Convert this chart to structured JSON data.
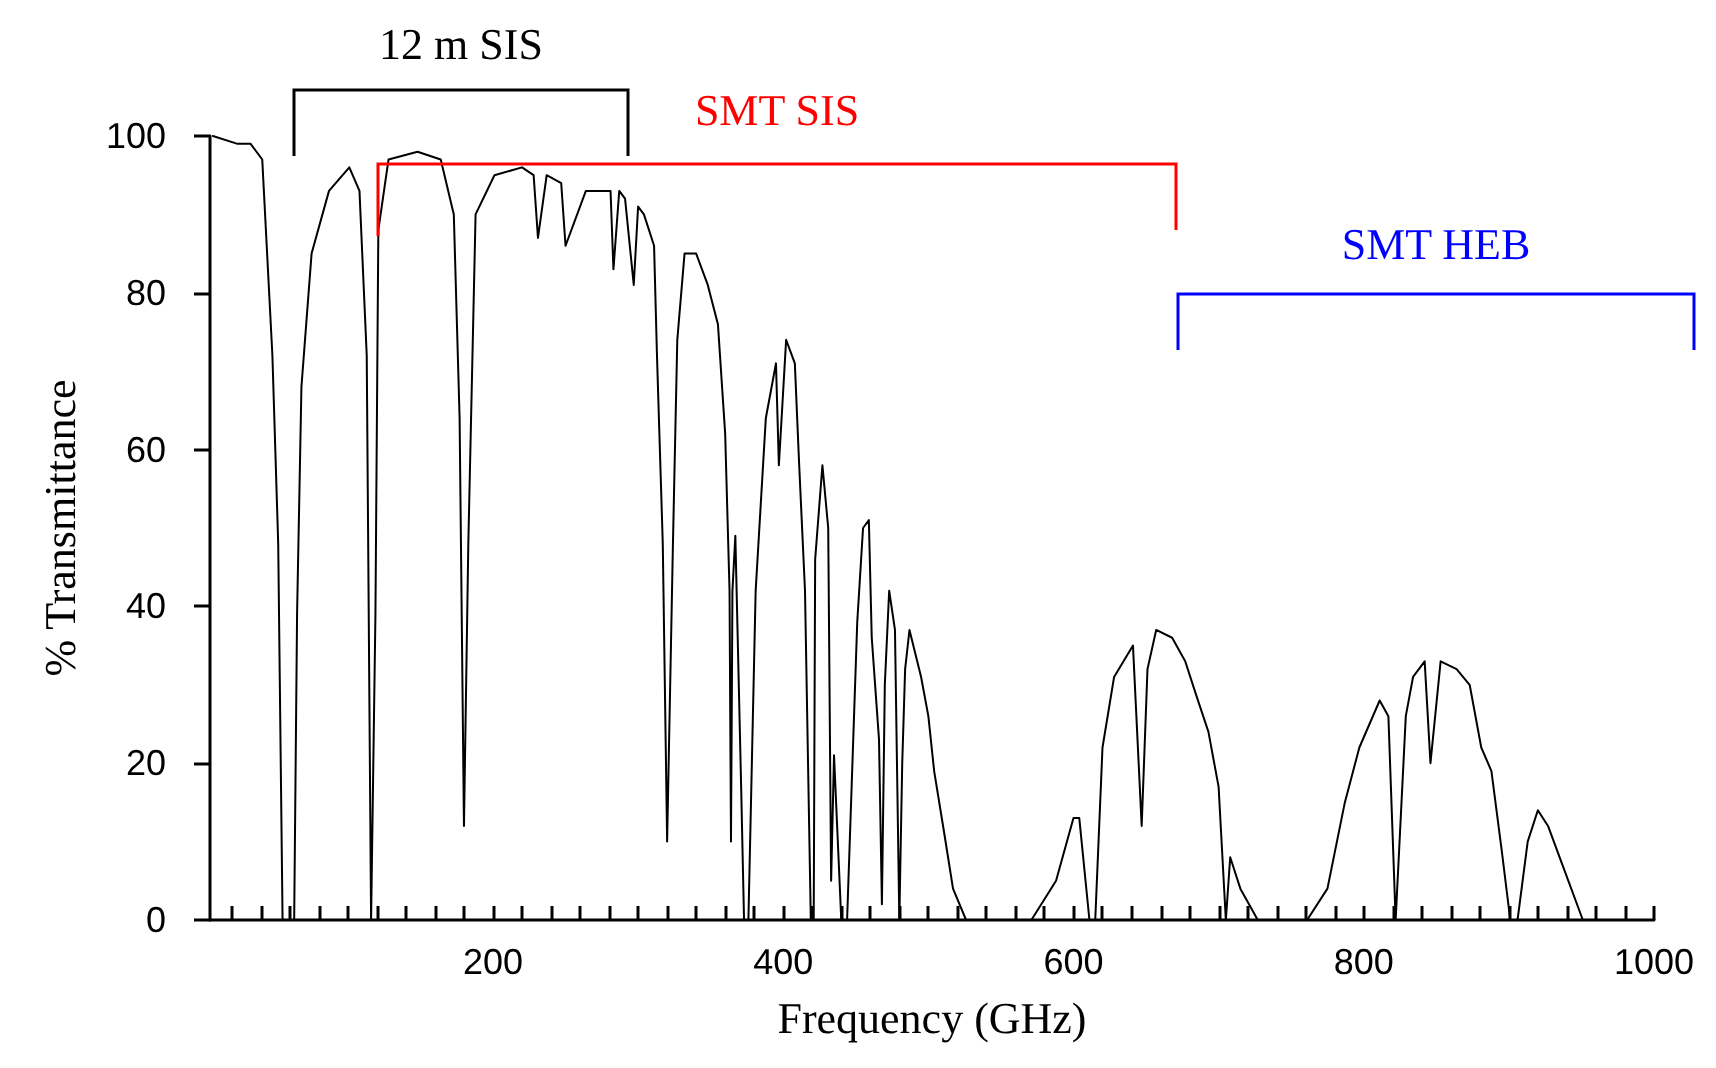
{
  "chart_data": {
    "type": "line",
    "xlabel": "Frequency (GHz)",
    "ylabel": "% Transmittance",
    "xlim": [
      5,
      1000
    ],
    "ylim": [
      0,
      100
    ],
    "xticks": [
      {
        "value": 20,
        "label": null
      },
      {
        "value": 40,
        "label": null
      },
      {
        "value": 60,
        "label": null
      },
      {
        "value": 80,
        "label": null
      },
      {
        "value": 100,
        "label": null
      },
      {
        "value": 120,
        "label": null
      },
      {
        "value": 140,
        "label": null
      },
      {
        "value": 160,
        "label": null
      },
      {
        "value": 180,
        "label": null
      },
      200,
      {
        "value": 220,
        "label": null
      },
      {
        "value": 240,
        "label": null
      },
      {
        "value": 260,
        "label": null
      },
      {
        "value": 280,
        "label": null
      },
      {
        "value": 300,
        "label": null
      },
      {
        "value": 320,
        "label": null
      },
      {
        "value": 340,
        "label": null
      },
      {
        "value": 360,
        "label": null
      },
      {
        "value": 380,
        "label": null
      },
      400,
      {
        "value": 420,
        "label": null
      },
      {
        "value": 440,
        "label": null
      },
      {
        "value": 460,
        "label": null
      },
      {
        "value": 480,
        "label": null
      },
      {
        "value": 500,
        "label": null
      },
      {
        "value": 520,
        "label": null
      },
      {
        "value": 540,
        "label": null
      },
      {
        "value": 560,
        "label": null
      },
      {
        "value": 580,
        "label": null
      },
      600,
      {
        "value": 620,
        "label": null
      },
      {
        "value": 640,
        "label": null
      },
      {
        "value": 660,
        "label": null
      },
      {
        "value": 680,
        "label": null
      },
      {
        "value": 700,
        "label": null
      },
      {
        "value": 720,
        "label": null
      },
      {
        "value": 740,
        "label": null
      },
      {
        "value": 760,
        "label": null
      },
      {
        "value": 780,
        "label": null
      },
      800,
      {
        "value": 820,
        "label": null
      },
      {
        "value": 840,
        "label": null
      },
      {
        "value": 860,
        "label": null
      },
      {
        "value": 880,
        "label": null
      },
      {
        "value": 900,
        "label": null
      },
      {
        "value": 920,
        "label": null
      },
      {
        "value": 940,
        "label": null
      },
      {
        "value": 960,
        "label": null
      },
      {
        "value": 980,
        "label": null
      },
      1000
    ],
    "yticks": [
      0,
      20,
      40,
      60,
      80,
      100
    ],
    "grid": false,
    "marker": "none",
    "line_style": "solid",
    "series": [
      {
        "color": "#000000",
        "x": [
          7,
          24,
          33,
          41,
          48,
          52,
          55,
          63,
          65,
          68,
          75,
          87,
          101,
          108,
          113,
          116,
          119,
          121,
          128,
          148,
          164,
          173,
          177,
          180,
          183,
          188,
          201,
          220,
          228,
          231,
          237,
          247,
          250,
          264,
          281,
          283,
          287,
          291,
          297,
          300,
          304,
          311,
          313,
          317,
          320,
          324,
          327,
          332,
          340,
          348,
          355,
          360,
          363,
          364,
          365,
          367,
          371,
          373,
          376,
          381,
          388,
          395,
          397,
          402,
          408,
          411,
          415,
          419,
          421,
          422,
          427,
          431,
          433,
          435,
          440,
          444,
          451,
          455,
          459,
          461,
          466,
          468,
          470,
          473,
          477,
          480,
          482,
          484,
          487,
          495,
          500,
          504,
          511,
          517,
          526,
          571,
          588,
          600,
          604,
          611,
          615,
          620,
          628,
          641,
          647,
          651,
          657,
          668,
          677,
          684,
          693,
          700,
          705,
          708,
          715,
          727,
          761,
          775,
          787,
          797,
          811,
          817,
          822,
          829,
          834,
          842,
          846,
          853,
          864,
          873,
          881,
          888,
          895,
          901,
          906,
          913,
          920,
          927,
          937,
          951,
          1000
        ],
        "values": [
          100,
          99,
          99,
          97,
          72,
          48,
          0,
          0,
          39,
          68,
          85,
          93,
          96,
          93,
          72,
          0,
          39,
          88,
          97,
          98,
          97,
          90,
          64,
          12,
          48,
          90,
          95,
          96,
          95,
          87,
          95,
          94,
          86,
          93,
          93,
          83,
          93,
          92,
          81,
          91,
          90,
          86,
          72,
          48,
          10,
          48,
          74,
          85,
          85,
          81,
          76,
          62,
          42,
          10,
          42,
          49,
          17,
          0,
          0,
          42,
          64,
          71,
          58,
          74,
          71,
          58,
          42,
          0,
          0,
          46,
          58,
          50,
          5,
          21,
          0,
          0,
          38,
          50,
          51,
          36,
          23,
          2,
          30,
          42,
          37,
          0,
          20,
          32,
          37,
          31,
          26,
          19,
          11,
          4,
          0,
          0,
          5,
          13,
          13,
          0,
          0,
          22,
          31,
          35,
          12,
          32,
          37,
          36,
          33,
          29,
          24,
          17,
          0,
          8,
          4,
          0,
          0,
          4,
          15,
          22,
          28,
          26,
          0,
          26,
          31,
          33,
          20,
          33,
          32,
          30,
          22,
          19,
          9,
          0,
          0,
          10,
          14,
          12,
          7,
          0,
          0
        ]
      }
    ],
    "annotations": [
      "12 m SIS",
      "SMT SIS",
      "SMT HEB"
    ]
  }
}
